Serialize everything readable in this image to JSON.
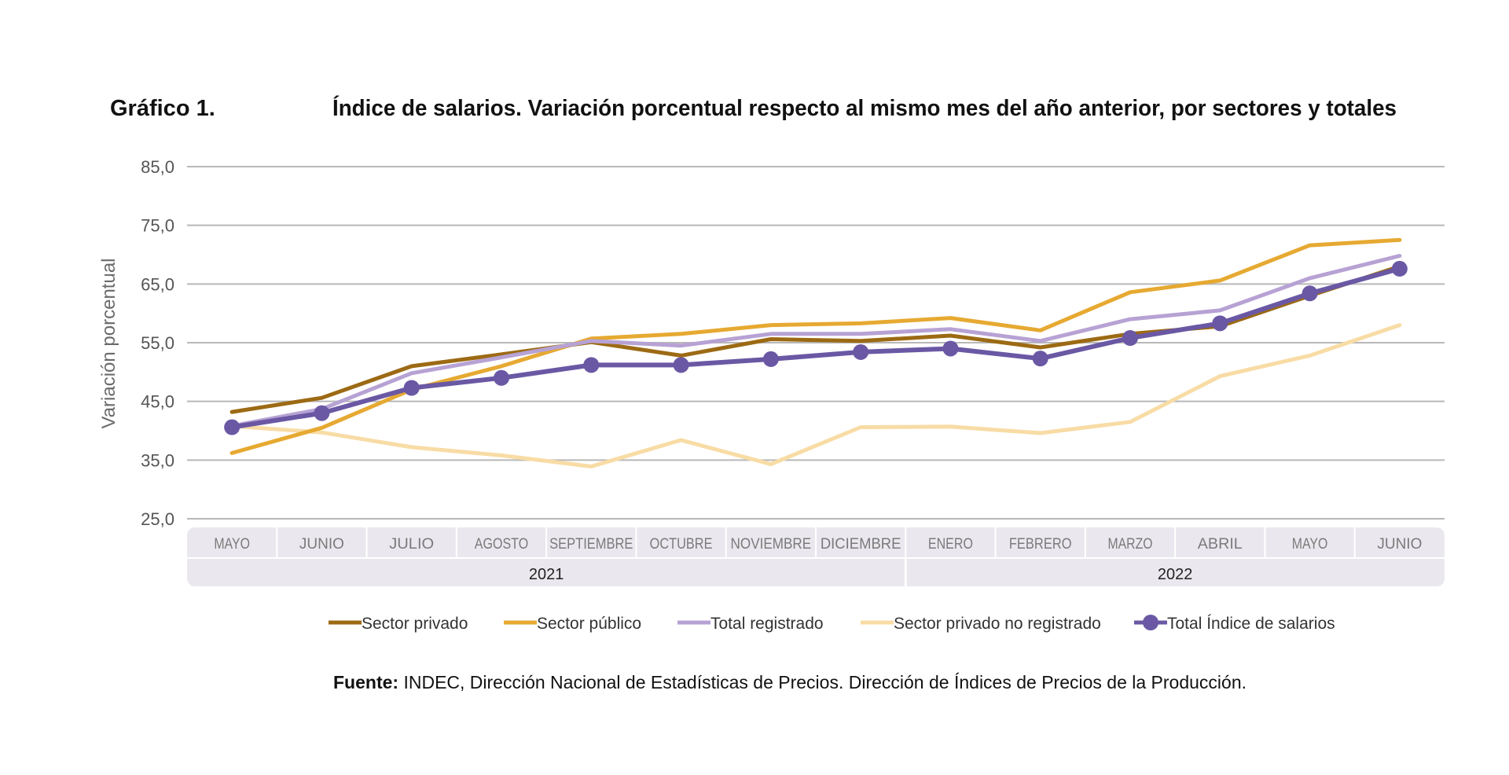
{
  "header": {
    "label": "Gráfico 1.",
    "title": "Índice de salarios. Variación porcentual respecto al mismo mes del año anterior, por sectores y totales"
  },
  "source": {
    "bold": "Fuente:",
    "text": " INDEC, Dirección Nacional de Estadísticas de Precios. Dirección de Índices de Precios de la Producción."
  },
  "chart_data": {
    "type": "line",
    "ylabel": "Variación porcentual",
    "ylim": [
      25,
      85
    ],
    "yticks": [
      "85,0",
      "75,0",
      "65,0",
      "55,0",
      "45,0",
      "35,0",
      "25,0"
    ],
    "ytick_values": [
      85,
      75,
      65,
      55,
      45,
      35,
      25
    ],
    "grid": true,
    "legend_position": "bottom",
    "categories": [
      "MAYO",
      "JUNIO",
      "JULIO",
      "AGOSTO",
      "SEPTIEMBRE",
      "OCTUBRE",
      "NOVIEMBRE",
      "DICIEMBRE",
      "ENERO",
      "FEBRERO",
      "MARZO",
      "ABRIL",
      "MAYO",
      "JUNIO"
    ],
    "years": [
      {
        "label": "2021",
        "from": 0,
        "to": 7
      },
      {
        "label": "2022",
        "from": 8,
        "to": 13
      }
    ],
    "series": [
      {
        "name": "Sector privado",
        "color": "#9c6a14",
        "markers": false,
        "values": [
          43.2,
          45.6,
          51.0,
          53.0,
          55.1,
          52.8,
          55.6,
          55.3,
          56.2,
          54.2,
          56.5,
          57.8,
          63.0,
          68.0
        ]
      },
      {
        "name": "Sector público",
        "color": "#e6a931",
        "markers": false,
        "values": [
          36.2,
          40.5,
          47.0,
          51.0,
          55.7,
          56.5,
          58.0,
          58.3,
          59.2,
          57.1,
          63.6,
          65.6,
          71.6,
          72.5
        ]
      },
      {
        "name": "Total registrado",
        "color": "#b7a2d4",
        "markers": false,
        "values": [
          40.8,
          43.7,
          49.8,
          52.5,
          55.3,
          54.5,
          56.5,
          56.5,
          57.3,
          55.3,
          59.0,
          60.5,
          66.0,
          69.8
        ]
      },
      {
        "name": "Sector privado no registrado",
        "color": "#f8dca5",
        "markers": false,
        "values": [
          40.8,
          39.7,
          37.2,
          35.8,
          33.9,
          38.4,
          34.3,
          40.6,
          40.7,
          39.6,
          41.5,
          49.3,
          52.8,
          58.0
        ]
      },
      {
        "name": "Total Índice de salarios",
        "color": "#6a58a4",
        "markers": true,
        "values": [
          40.6,
          43.0,
          47.3,
          49.0,
          51.2,
          51.2,
          52.2,
          53.4,
          54.0,
          52.3,
          55.8,
          58.3,
          63.4,
          67.6
        ]
      }
    ]
  }
}
